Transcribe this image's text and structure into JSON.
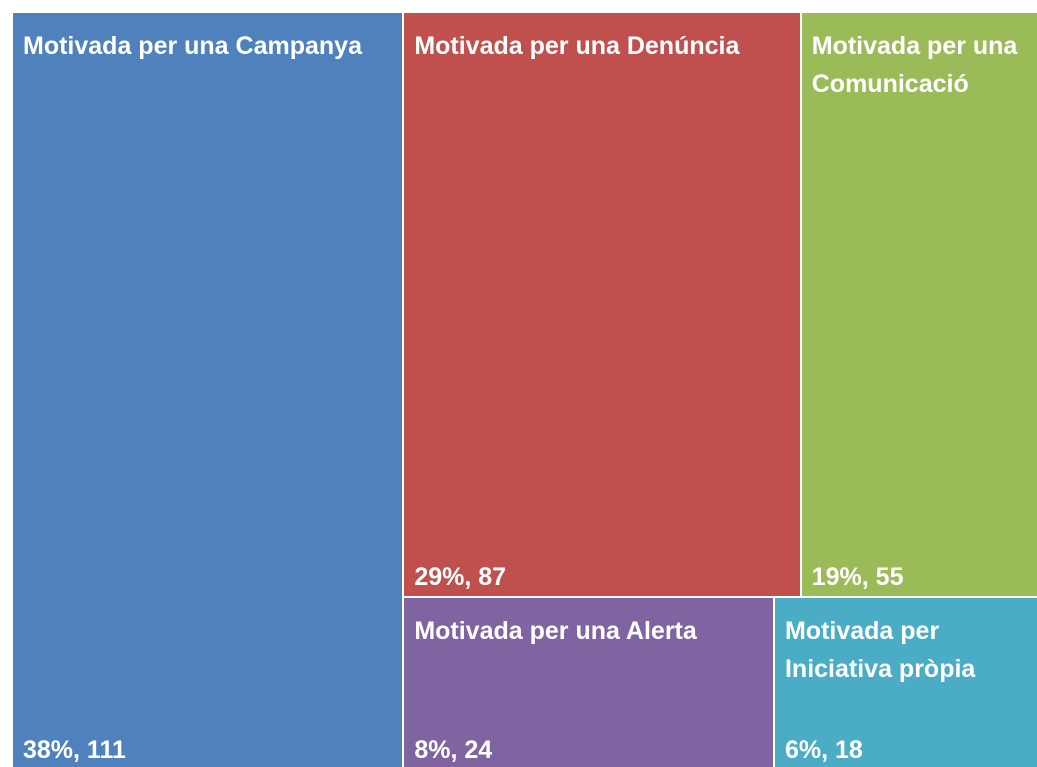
{
  "chart_data": {
    "type": "treemap",
    "categories": [
      "Motivada per una Campanya",
      "Motivada per una Denúncia",
      "Motivada per una Comunicació",
      "Motivada per una Alerta",
      "Motivada per Iniciativa pròpia"
    ],
    "values": [
      111,
      87,
      55,
      24,
      18
    ],
    "value_labels": [
      "38%, 111",
      "29%, 87",
      "19%, 55",
      "8%, 24",
      "6%, 18"
    ],
    "colors": [
      "#4f81bd",
      "#c0504d",
      "#9bbb59",
      "#8064a2",
      "#4bacc6"
    ]
  }
}
